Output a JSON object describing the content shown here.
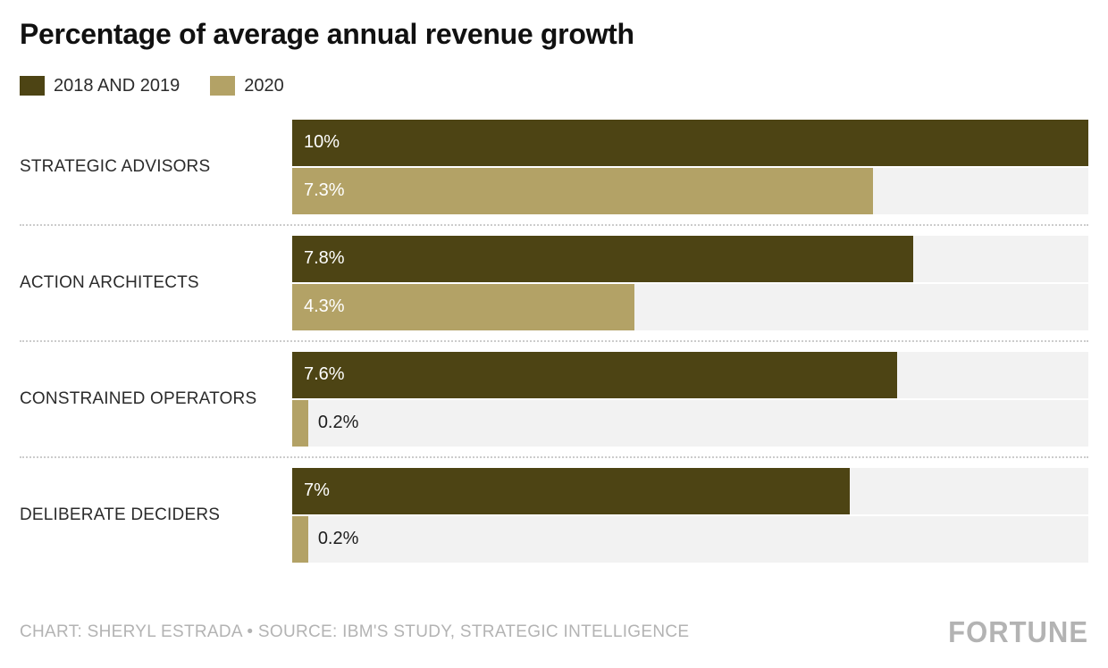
{
  "chart_data": {
    "type": "bar",
    "orientation": "horizontal",
    "title": "Percentage of average annual revenue growth",
    "categories": [
      "STRATEGIC ADVISORS",
      "ACTION ARCHITECTS",
      "CONSTRAINED OPERATORS",
      "DELIBERATE DECIDERS"
    ],
    "series": [
      {
        "name": "2018 AND 2019",
        "color": "#4d4414",
        "values": [
          10,
          7.8,
          7.6,
          7
        ],
        "labels": [
          "10%",
          "7.8%",
          "7.6%",
          "7%"
        ]
      },
      {
        "name": "2020",
        "color": "#b3a266",
        "values": [
          7.3,
          4.3,
          0.2,
          0.2
        ],
        "labels": [
          "7.3%",
          "4.3%",
          "0.2%",
          "0.2%"
        ]
      }
    ],
    "xlim": [
      0,
      10
    ],
    "grid": false,
    "legend_position": "top-left",
    "track_color": "#f2f2f2"
  },
  "footer": {
    "credit": "CHART: SHERYL ESTRADA • SOURCE: IBM'S STUDY, STRATEGIC INTELLIGENCE",
    "logo": "FORTUNE"
  }
}
